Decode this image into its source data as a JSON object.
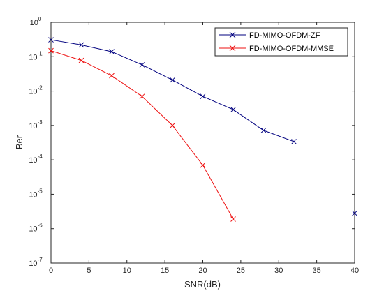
{
  "chart_data": {
    "type": "line",
    "xlabel": "SNR(dB)",
    "ylabel": "Ber",
    "xlim": [
      0,
      40
    ],
    "ylim": [
      1e-07,
      1
    ],
    "yscale": "log",
    "grid": false,
    "legend_position": "top-right",
    "x_ticks": [
      "0",
      "5",
      "10",
      "15",
      "20",
      "25",
      "30",
      "35",
      "40"
    ],
    "y_tick_exponents": [
      "0",
      "-1",
      "-2",
      "-3",
      "-4",
      "-5",
      "-6",
      "-7"
    ],
    "y_tick_base": "10",
    "series": [
      {
        "name": "FD-MIMO-OFDM-ZF",
        "color": "#00007f",
        "marker": "x",
        "x": [
          0,
          4,
          8,
          12,
          16,
          20,
          24,
          28,
          32,
          40
        ],
        "y": [
          0.31,
          0.22,
          0.14,
          0.058,
          0.021,
          0.007,
          0.0029,
          0.00072,
          0.00034,
          2.8e-06
        ]
      },
      {
        "name": "FD-MIMO-OFDM-MMSE",
        "color": "#ee1111",
        "marker": "x",
        "x": [
          0,
          4,
          8,
          12,
          16,
          20,
          24
        ],
        "y": [
          0.15,
          0.078,
          0.028,
          0.007,
          0.001,
          7e-05,
          1.9e-06
        ]
      }
    ]
  }
}
